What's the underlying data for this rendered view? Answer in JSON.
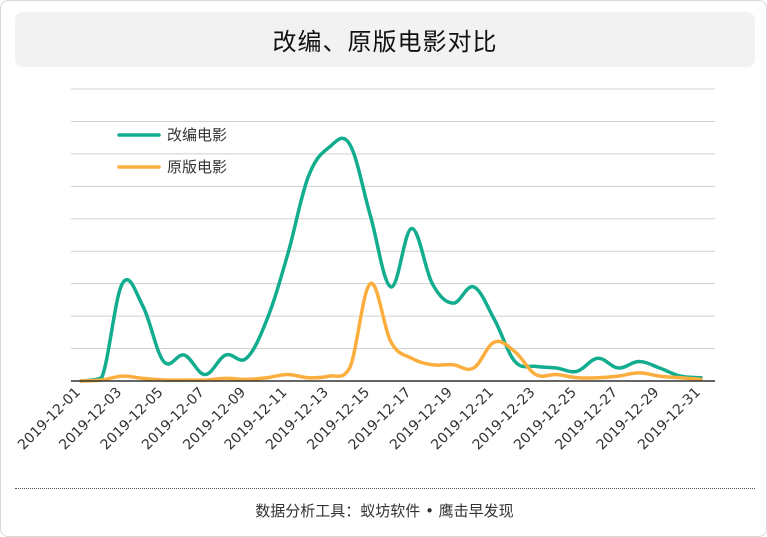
{
  "title": "改编、原版电影对比",
  "footer": "数据分析工具：蚁坊软件 • 鹰击早发现",
  "colors": {
    "series_adapted": "#12ad8e",
    "series_original": "#fbae3d",
    "grid": "#d0d0d0",
    "axis": "#333333"
  },
  "chart_data": {
    "type": "line",
    "title": "改编、原版电影对比",
    "xlabel": "",
    "ylabel": "",
    "x": [
      "2019-12-01",
      "2019-12-02",
      "2019-12-03",
      "2019-12-04",
      "2019-12-05",
      "2019-12-06",
      "2019-12-07",
      "2019-12-08",
      "2019-12-09",
      "2019-12-10",
      "2019-12-11",
      "2019-12-12",
      "2019-12-13",
      "2019-12-14",
      "2019-12-15",
      "2019-12-16",
      "2019-12-17",
      "2019-12-18",
      "2019-12-19",
      "2019-12-20",
      "2019-12-21",
      "2019-12-22",
      "2019-12-23",
      "2019-12-24",
      "2019-12-25",
      "2019-12-26",
      "2019-12-27",
      "2019-12-28",
      "2019-12-29",
      "2019-12-30",
      "2019-12-31"
    ],
    "tick_labels": [
      "2019-12-01",
      "2019-12-03",
      "2019-12-05",
      "2019-12-07",
      "2019-12-09",
      "2019-12-11",
      "2019-12-13",
      "2019-12-15",
      "2019-12-17",
      "2019-12-19",
      "2019-12-21",
      "2019-12-23",
      "2019-12-25",
      "2019-12-27",
      "2019-12-29",
      "2019-12-31"
    ],
    "series": [
      {
        "name": "改编电影",
        "values": [
          0,
          1,
          30,
          23,
          6,
          8,
          2,
          8,
          7,
          19,
          39,
          63,
          72,
          73,
          51,
          29,
          47,
          30,
          24,
          29,
          19,
          6,
          4.5,
          4,
          3,
          7,
          4,
          6,
          4,
          1.5,
          1
        ]
      },
      {
        "name": "原版电影",
        "values": [
          0,
          0.3,
          1.5,
          0.8,
          0.3,
          0.3,
          0.3,
          0.8,
          0.5,
          1,
          2,
          1,
          1.5,
          4,
          30,
          12,
          7,
          5,
          5,
          4,
          12,
          9,
          2,
          2,
          1,
          1,
          1.5,
          2.5,
          1.5,
          1,
          0.5
        ]
      }
    ],
    "ylim": [
      0,
      90
    ],
    "grid": true,
    "legend": "top-left"
  }
}
